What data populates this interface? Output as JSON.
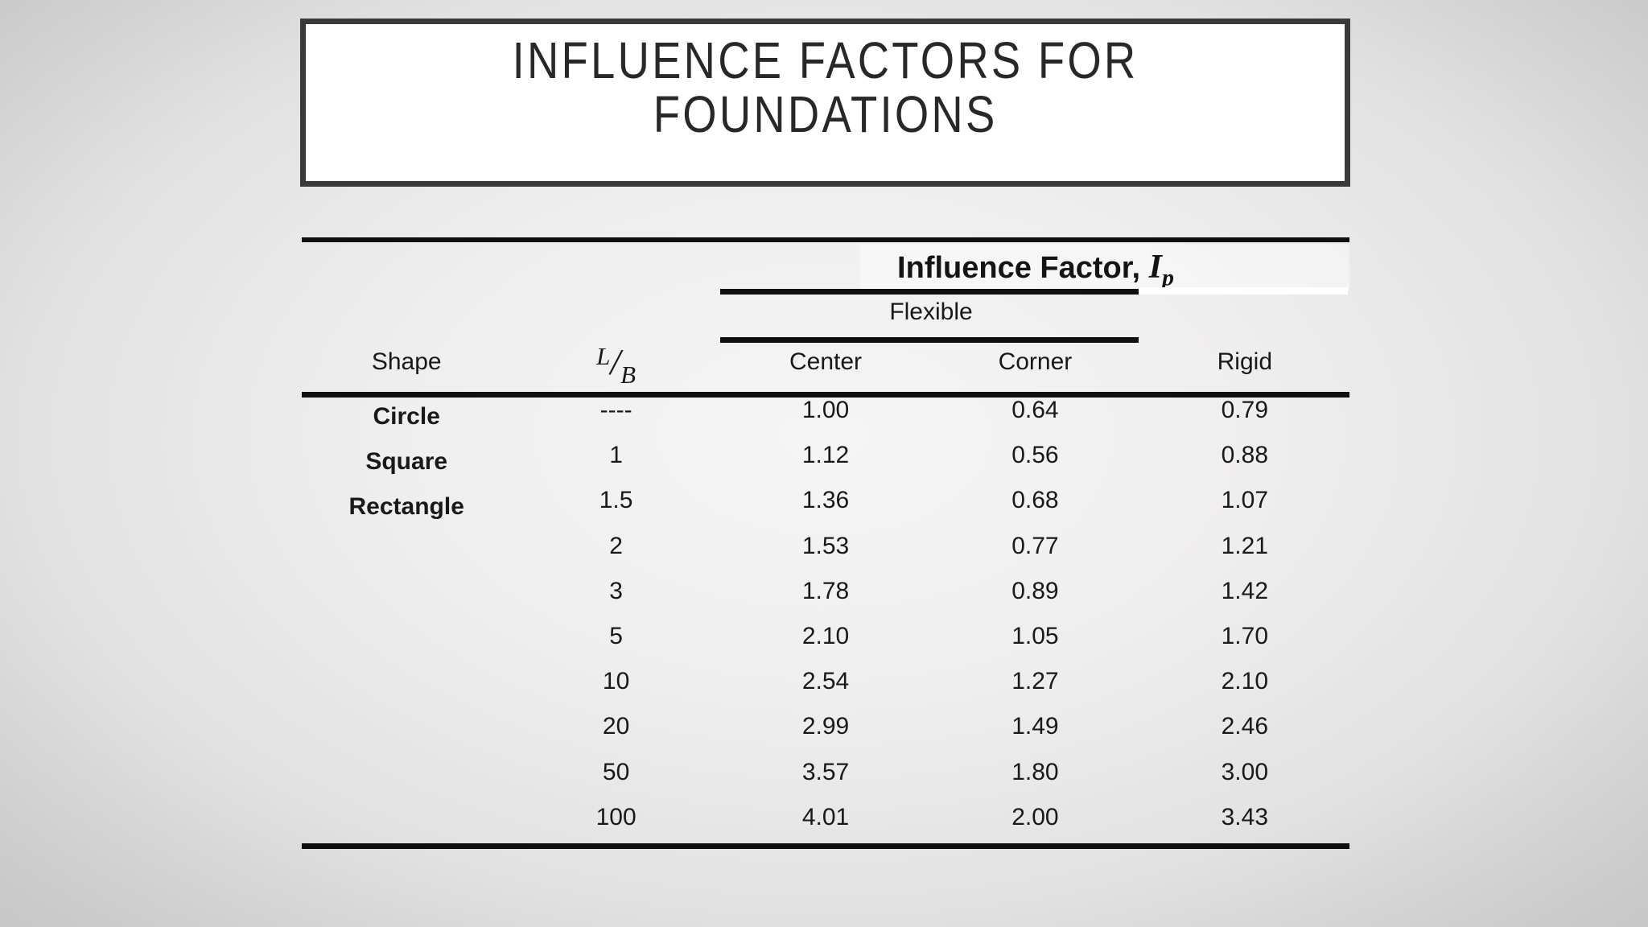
{
  "title": {
    "line1": "INFLUENCE FACTORS FOR",
    "line2": "FOUNDATIONS"
  },
  "table": {
    "header": {
      "group_label": "Influence Factor,",
      "symbol": "I",
      "symbol_sub": "p",
      "flexible": "Flexible"
    },
    "columns": {
      "shape": "Shape",
      "lb_num": "L",
      "lb_slash": "/",
      "lb_den": "B",
      "center": "Center",
      "corner": "Corner",
      "rigid": "Rigid"
    },
    "rows": [
      {
        "shape": "Circle",
        "lb": "----",
        "center": "1.00",
        "corner": "0.64",
        "rigid": "0.79"
      },
      {
        "shape": "Square",
        "lb": "1",
        "center": "1.12",
        "corner": "0.56",
        "rigid": "0.88"
      },
      {
        "shape": "Rectangle",
        "lb": "1.5",
        "center": "1.36",
        "corner": "0.68",
        "rigid": "1.07"
      },
      {
        "shape": "",
        "lb": "2",
        "center": "1.53",
        "corner": "0.77",
        "rigid": "1.21"
      },
      {
        "shape": "",
        "lb": "3",
        "center": "1.78",
        "corner": "0.89",
        "rigid": "1.42"
      },
      {
        "shape": "",
        "lb": "5",
        "center": "2.10",
        "corner": "1.05",
        "rigid": "1.70"
      },
      {
        "shape": "",
        "lb": "10",
        "center": "2.54",
        "corner": "1.27",
        "rigid": "2.10"
      },
      {
        "shape": "",
        "lb": "20",
        "center": "2.99",
        "corner": "1.49",
        "rigid": "2.46"
      },
      {
        "shape": "",
        "lb": "50",
        "center": "3.57",
        "corner": "1.80",
        "rigid": "3.00"
      },
      {
        "shape": "",
        "lb": "100",
        "center": "4.01",
        "corner": "2.00",
        "rigid": "3.43"
      }
    ]
  },
  "colors": {
    "rule": "#0f0f0f",
    "title_border": "#3a3a3a",
    "text": "#191919",
    "band": "#ffffff",
    "background_edge": "#c7c7c7",
    "background_center": "#f6f5f5"
  }
}
